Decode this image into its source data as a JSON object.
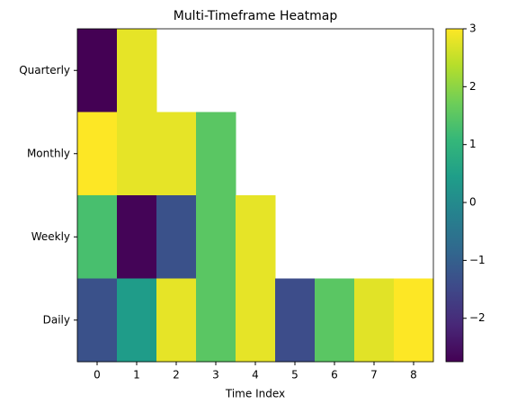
{
  "chart_data": {
    "type": "heatmap",
    "title": "Multi-Timeframe Heatmap",
    "x_label": "Time Index",
    "x": [
      0,
      1,
      2,
      3,
      4,
      5,
      6,
      7,
      8
    ],
    "y": [
      "Quarterly",
      "Monthly",
      "Weekly",
      "Daily"
    ],
    "values": [
      [
        -2.75,
        2.8,
        null,
        null,
        null,
        null,
        null,
        null,
        null
      ],
      [
        3.0,
        2.8,
        2.8,
        1.5,
        null,
        null,
        null,
        null,
        null
      ],
      [
        1.3,
        -2.7,
        -1.3,
        1.5,
        2.8,
        null,
        null,
        null,
        null
      ],
      [
        -1.3,
        0.4,
        2.8,
        1.5,
        2.8,
        -1.4,
        1.5,
        2.75,
        3.0
      ]
    ],
    "colormap": "viridis",
    "zlim": [
      -2.75,
      3
    ],
    "zticks": [
      {
        "value": -2,
        "label": "−2"
      },
      {
        "value": -1,
        "label": "−1"
      },
      0,
      1,
      2,
      3
    ]
  }
}
